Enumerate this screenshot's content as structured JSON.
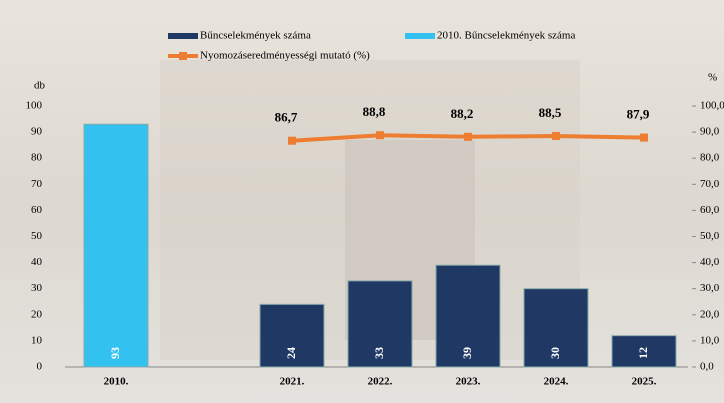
{
  "chart_data": {
    "type": "bar",
    "categories": [
      "2010.",
      null,
      "2021.",
      "2022.",
      "2023.",
      "2024.",
      "2025."
    ],
    "series": [
      {
        "name": "Bűncselekmények száma",
        "color": "#1f3864",
        "values": [
          null,
          null,
          24,
          33,
          39,
          30,
          12
        ]
      },
      {
        "name": "2010. Bűncselekmények száma",
        "color": "#33c2f0",
        "values": [
          93,
          null,
          null,
          null,
          null,
          null,
          null
        ]
      },
      {
        "name": "Nyomozáseredményességi mutató (%)",
        "color": "#ed7d31",
        "axis": "y2",
        "type": "line",
        "values": [
          null,
          null,
          86.7,
          88.8,
          88.2,
          88.5,
          87.9
        ],
        "value_labels": [
          null,
          null,
          "86,7",
          "88,8",
          "88,2",
          "88,5",
          "87,9"
        ]
      }
    ],
    "y_label": "db",
    "y2_label": "%",
    "ylim": [
      0,
      100
    ],
    "yticks": [
      0,
      10,
      20,
      30,
      40,
      50,
      60,
      70,
      80,
      90,
      100
    ],
    "y2lim": [
      0,
      100
    ],
    "y2ticks": [
      {
        "value": 0,
        "label": "0,0"
      },
      {
        "value": 10,
        "label": "10,0"
      },
      {
        "value": 20,
        "label": "20,0"
      },
      {
        "value": 30,
        "label": "30,0"
      },
      {
        "value": 40,
        "label": "40,0"
      },
      {
        "value": 50,
        "label": "50,0"
      },
      {
        "value": 60,
        "label": "60,0"
      },
      {
        "value": 70,
        "label": "70,0"
      },
      {
        "value": 80,
        "label": "80,0"
      },
      {
        "value": 90,
        "label": "90,0"
      },
      {
        "value": 100,
        "label": "100,0"
      }
    ],
    "legend": "top",
    "grid": false
  }
}
